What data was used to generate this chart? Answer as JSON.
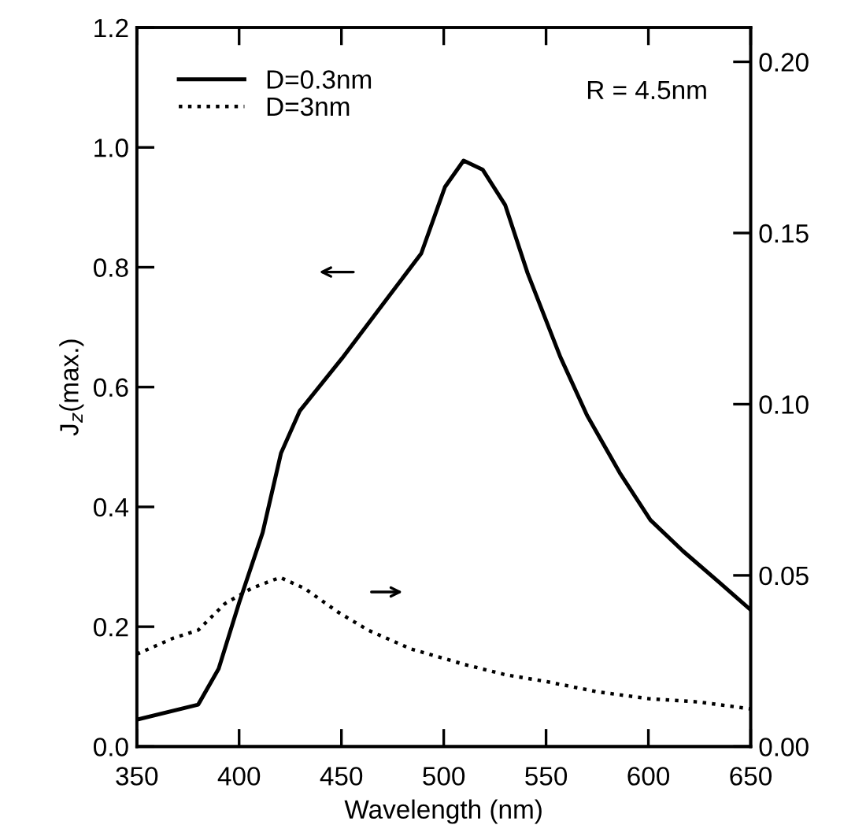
{
  "chart_data": {
    "type": "line",
    "xlabel": "Wavelength (nm)",
    "ylabel": "J$_{z}$(max.)",
    "annotations": [
      "R = 4.5nm"
    ],
    "xlim": [
      350,
      650
    ],
    "xticks": [
      350,
      400,
      450,
      500,
      550,
      600,
      650
    ],
    "ylim": [
      0,
      1.2
    ],
    "yticks": [
      {
        "value": 0,
        "label": "0.0"
      },
      0.2,
      0.4,
      0.6,
      0.8,
      {
        "value": 1,
        "label": "1.0"
      },
      1.2
    ],
    "y2lim": [
      0,
      0.21
    ],
    "y2ticks": [
      {
        "value": 0,
        "label": "0.00"
      },
      0.05,
      {
        "value": 0.1,
        "label": "0.10"
      },
      0.15,
      {
        "value": 0.2,
        "label": "0.20"
      }
    ],
    "legend": "top left",
    "grid": false,
    "series": [
      {
        "name": "D=0.3nm",
        "color": "#000000",
        "line_style": "solid",
        "x": [
          350,
          380,
          390,
          400,
          411.5,
          420.5,
          429.6,
          450.3,
          473.5,
          489,
          500.6,
          509.7,
          519,
          530,
          541,
          557,
          570,
          586,
          601,
          617,
          635,
          650
        ],
        "values": [
          0.045,
          0.07,
          0.13,
          0.24,
          0.357,
          0.49,
          0.56,
          0.648,
          0.753,
          0.823,
          0.934,
          0.978,
          0.963,
          0.904,
          0.79,
          0.65,
          0.553,
          0.457,
          0.378,
          0.326,
          0.273,
          0.228
        ]
      },
      {
        "name": "D=3nm",
        "color": "#000000",
        "line_style": "dotted",
        "axis": "y2",
        "x": [
          350,
          368,
          380,
          393,
          406,
          420,
          432,
          448,
          463,
          484,
          510,
          530,
          550,
          575,
          600,
          625,
          650
        ],
        "values": [
          0.027,
          0.0317,
          0.034,
          0.0417,
          0.0462,
          0.0494,
          0.0462,
          0.0394,
          0.034,
          0.0285,
          0.024,
          0.021,
          0.019,
          0.016,
          0.014,
          0.013,
          0.011
        ]
      }
    ]
  }
}
